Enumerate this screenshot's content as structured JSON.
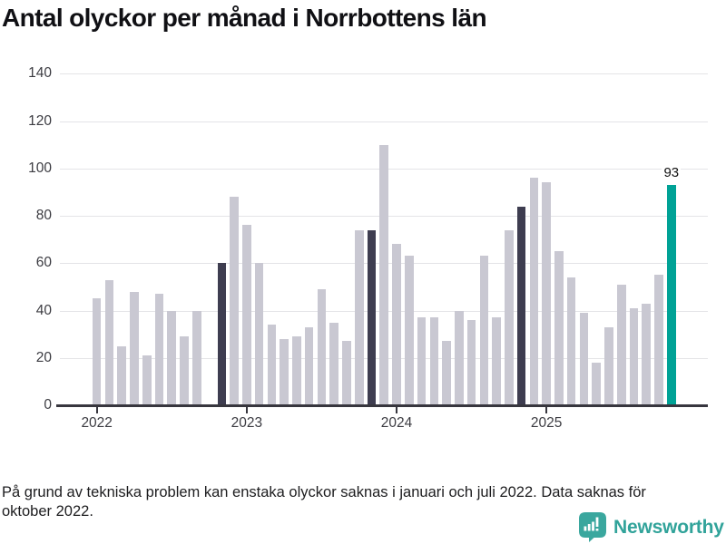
{
  "title": "Antal olyckor per månad i Norrbottens län",
  "footnote": "På grund av tekniska problem kan enstaka olyckor saknas i januari och juli 2022. Data saknas för oktober 2022.",
  "brand": {
    "name": "Newsworthy"
  },
  "annotation": {
    "label": "93",
    "month": "2025-11"
  },
  "colors": {
    "bar_default": "#c9c8d2",
    "bar_highlight": "#3e3d50",
    "bar_latest": "#00a296",
    "grid": "#e4e4e7",
    "axis": "#37363e",
    "tick_text": "#3c3c42",
    "brand_teal": "#31a39a"
  },
  "chart_data": {
    "type": "bar",
    "title": "Antal olyckor per månad i Norrbottens län",
    "ylabel": "",
    "xlabel": "",
    "ylim": [
      0,
      140
    ],
    "yticks": [
      0,
      20,
      40,
      60,
      80,
      100,
      120,
      140
    ],
    "grid": true,
    "x_tick_labels": [
      "2022",
      "2023",
      "2024",
      "2025"
    ],
    "months_per_tick": 12,
    "series": [
      {
        "month": "2022-01",
        "value": 45,
        "role": "default"
      },
      {
        "month": "2022-02",
        "value": 53,
        "role": "default"
      },
      {
        "month": "2022-03",
        "value": 25,
        "role": "default"
      },
      {
        "month": "2022-04",
        "value": 48,
        "role": "default"
      },
      {
        "month": "2022-05",
        "value": 21,
        "role": "default"
      },
      {
        "month": "2022-06",
        "value": 47,
        "role": "default"
      },
      {
        "month": "2022-07",
        "value": 40,
        "role": "default"
      },
      {
        "month": "2022-08",
        "value": 29,
        "role": "default"
      },
      {
        "month": "2022-09",
        "value": 40,
        "role": "default"
      },
      {
        "month": "2022-10",
        "value": null,
        "role": "missing"
      },
      {
        "month": "2022-11",
        "value": 60,
        "role": "highlight"
      },
      {
        "month": "2022-12",
        "value": 88,
        "role": "default"
      },
      {
        "month": "2023-01",
        "value": 76,
        "role": "default"
      },
      {
        "month": "2023-02",
        "value": 60,
        "role": "default"
      },
      {
        "month": "2023-03",
        "value": 34,
        "role": "default"
      },
      {
        "month": "2023-04",
        "value": 28,
        "role": "default"
      },
      {
        "month": "2023-05",
        "value": 29,
        "role": "default"
      },
      {
        "month": "2023-06",
        "value": 33,
        "role": "default"
      },
      {
        "month": "2023-07",
        "value": 49,
        "role": "default"
      },
      {
        "month": "2023-08",
        "value": 35,
        "role": "default"
      },
      {
        "month": "2023-09",
        "value": 27,
        "role": "default"
      },
      {
        "month": "2023-10",
        "value": 74,
        "role": "default"
      },
      {
        "month": "2023-11",
        "value": 74,
        "role": "highlight"
      },
      {
        "month": "2023-12",
        "value": 110,
        "role": "default"
      },
      {
        "month": "2024-01",
        "value": 68,
        "role": "default"
      },
      {
        "month": "2024-02",
        "value": 63,
        "role": "default"
      },
      {
        "month": "2024-03",
        "value": 37,
        "role": "default"
      },
      {
        "month": "2024-04",
        "value": 37,
        "role": "default"
      },
      {
        "month": "2024-05",
        "value": 27,
        "role": "default"
      },
      {
        "month": "2024-06",
        "value": 40,
        "role": "default"
      },
      {
        "month": "2024-07",
        "value": 36,
        "role": "default"
      },
      {
        "month": "2024-08",
        "value": 63,
        "role": "default"
      },
      {
        "month": "2024-09",
        "value": 37,
        "role": "default"
      },
      {
        "month": "2024-10",
        "value": 74,
        "role": "default"
      },
      {
        "month": "2024-11",
        "value": 84,
        "role": "highlight"
      },
      {
        "month": "2024-12",
        "value": 96,
        "role": "default"
      },
      {
        "month": "2025-01",
        "value": 94,
        "role": "default"
      },
      {
        "month": "2025-02",
        "value": 65,
        "role": "default"
      },
      {
        "month": "2025-03",
        "value": 54,
        "role": "default"
      },
      {
        "month": "2025-04",
        "value": 39,
        "role": "default"
      },
      {
        "month": "2025-05",
        "value": 18,
        "role": "default"
      },
      {
        "month": "2025-06",
        "value": 33,
        "role": "default"
      },
      {
        "month": "2025-07",
        "value": 51,
        "role": "default"
      },
      {
        "month": "2025-08",
        "value": 41,
        "role": "default"
      },
      {
        "month": "2025-09",
        "value": 43,
        "role": "default"
      },
      {
        "month": "2025-10",
        "value": 55,
        "role": "default"
      },
      {
        "month": "2025-11",
        "value": 93,
        "role": "latest"
      }
    ]
  }
}
